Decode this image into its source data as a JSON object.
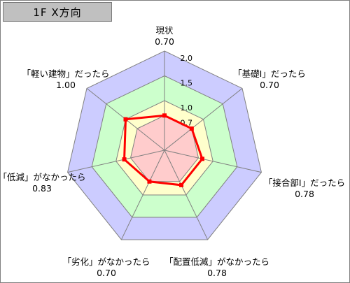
{
  "chart_data": {
    "type": "radar",
    "title": "1F X方向",
    "axes": [
      {
        "label": "現状",
        "value": 0.7,
        "value_text": "0.70"
      },
      {
        "label": "「基礎Ⅰ」だったら",
        "value": 0.7,
        "value_text": "0.70"
      },
      {
        "label": "「接合部Ⅰ」だったら",
        "value": 0.78,
        "value_text": "0.78"
      },
      {
        "label": "「配置低減」がなかったら",
        "value": 0.78,
        "value_text": "0.78"
      },
      {
        "label": "「劣化」がなかったら",
        "value": 0.7,
        "value_text": "0.70"
      },
      {
        "label": "「低減」がなかったら",
        "value": 0.83,
        "value_text": "0.83"
      },
      {
        "label": "「軽い建物」だったら",
        "value": 1.0,
        "value_text": "1.00"
      }
    ],
    "scale_max": 2.0,
    "rings": [
      {
        "value": 2.0,
        "label": "2.0",
        "fill": "#ccccff"
      },
      {
        "value": 1.5,
        "label": "1.5",
        "fill": "#ccffcc"
      },
      {
        "value": 1.0,
        "label": "1.0",
        "fill": "#ffffcc"
      },
      {
        "value": 0.7,
        "label": "0.7",
        "fill": "#ffcccc"
      }
    ],
    "series_color": "#ff0000",
    "grid_color": "#808080"
  }
}
